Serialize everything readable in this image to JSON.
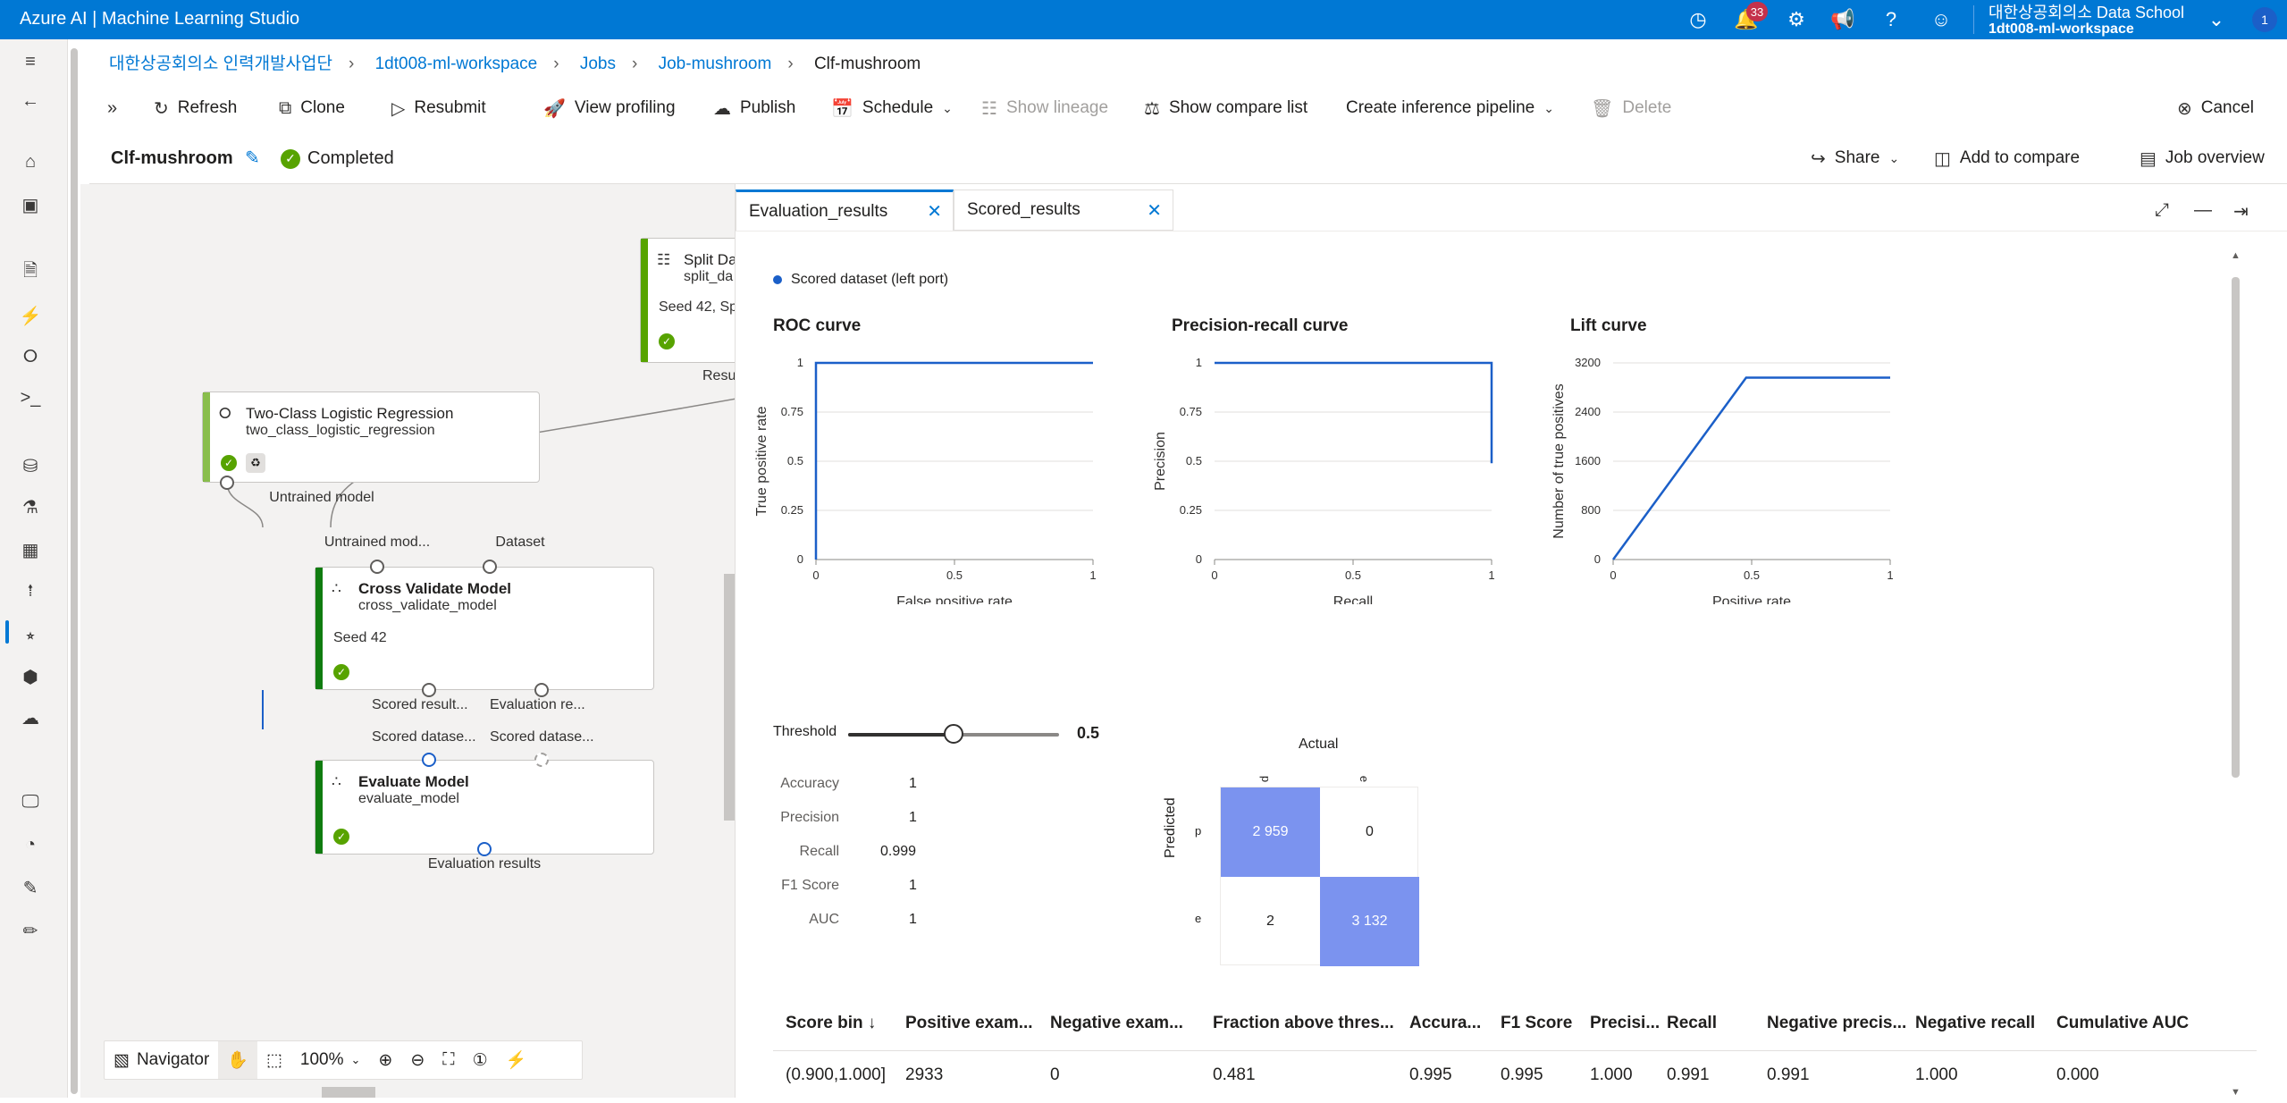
{
  "topbar": {
    "title": "Azure AI | Machine Learning Studio",
    "notification_count": "33",
    "org": "대한상공회의소 Data School",
    "workspace": "1dt008-ml-workspace",
    "avatar_initial": "1"
  },
  "breadcrumb": {
    "items": [
      "대한상공회의소 인력개발사업단",
      "1dt008-ml-workspace",
      "Jobs",
      "Job-mushroom",
      "Clf-mushroom"
    ]
  },
  "toolbar": {
    "refresh": "Refresh",
    "clone": "Clone",
    "resubmit": "Resubmit",
    "view_profiling": "View profiling",
    "publish": "Publish",
    "schedule": "Schedule",
    "show_lineage": "Show lineage",
    "show_compare_list": "Show compare list",
    "create_inference_pipeline": "Create inference pipeline",
    "delete": "Delete",
    "cancel": "Cancel"
  },
  "job": {
    "name": "Clf-mushroom",
    "status": "Completed",
    "share": "Share",
    "add_to_compare": "Add to compare",
    "job_overview": "Job overview"
  },
  "canvas": {
    "split_node": {
      "title": "Split Da",
      "subtitle": "split_da",
      "seed": "Seed 42, Sp",
      "port_label": "Resul"
    },
    "lr_node": {
      "title": "Two-Class Logistic Regression",
      "subtitle": "two_class_logistic_regression",
      "out_port": "Untrained model"
    },
    "cv_node": {
      "title": "Cross Validate Model",
      "subtitle": "cross_validate_model",
      "seed": "Seed 42",
      "in1": "Untrained mod...",
      "in2": "Dataset",
      "out1": "Scored result...",
      "out2": "Evaluation re..."
    },
    "eval_node": {
      "title": "Evaluate Model",
      "subtitle": "evaluate_model",
      "in1": "Scored datase...",
      "in2": "Scored datase...",
      "out": "Evaluation results"
    },
    "navigator": {
      "label": "Navigator",
      "zoom": "100%"
    }
  },
  "panel": {
    "tabs": [
      "Evaluation_results",
      "Scored_results"
    ],
    "legend": "Scored dataset (left port)",
    "threshold_label": "Threshold",
    "threshold_value": "0.5",
    "metrics": [
      {
        "label": "Accuracy",
        "value": "1"
      },
      {
        "label": "Precision",
        "value": "1"
      },
      {
        "label": "Recall",
        "value": "0.999"
      },
      {
        "label": "F1 Score",
        "value": "1"
      },
      {
        "label": "AUC",
        "value": "1"
      }
    ],
    "confusion": {
      "actual_label": "Actual",
      "predicted_label": "Predicted",
      "col_labels": [
        "p",
        "e"
      ],
      "row_labels": [
        "p",
        "e"
      ],
      "cells": [
        [
          "2 959",
          "0"
        ],
        [
          "2",
          "3 132"
        ]
      ]
    },
    "table": {
      "headers": [
        "Score bin ↓",
        "Positive exam...",
        "Negative exam...",
        "Fraction above thres...",
        "Accura...",
        "F1 Score",
        "Precisi...",
        "Recall",
        "Negative precis...",
        "Negative recall",
        "Cumulative AUC"
      ],
      "rows": [
        [
          "(0.900,1.000]",
          "2933",
          "0",
          "0.481",
          "0.995",
          "0.995",
          "1.000",
          "0.991",
          "0.991",
          "1.000",
          "0.000"
        ]
      ]
    }
  },
  "chart_data": [
    {
      "type": "line",
      "title": "ROC curve",
      "xlabel": "False positive rate",
      "ylabel": "True positive rate",
      "xlim": [
        0,
        1
      ],
      "ylim": [
        0,
        1
      ],
      "xticks": [
        "0",
        "0.5",
        "1"
      ],
      "yticks": [
        "0",
        "0.25",
        "0.5",
        "0.75",
        "1"
      ],
      "color": "#1b5fc8",
      "x": [
        0,
        0,
        1
      ],
      "y": [
        0,
        1,
        1
      ]
    },
    {
      "type": "line",
      "title": "Precision-recall curve",
      "xlabel": "Recall",
      "ylabel": "Precision",
      "xlim": [
        0,
        1
      ],
      "ylim": [
        0,
        1
      ],
      "xticks": [
        "0",
        "0.5",
        "1"
      ],
      "yticks": [
        "0",
        "0.25",
        "0.5",
        "0.75",
        "1"
      ],
      "color": "#1b5fc8",
      "x": [
        0,
        1,
        1
      ],
      "y": [
        1,
        1,
        0.49
      ]
    },
    {
      "type": "line",
      "title": "Lift curve",
      "xlabel": "Positive rate",
      "ylabel": "Number of true positives",
      "xlim": [
        0,
        1
      ],
      "ylim": [
        0,
        3200
      ],
      "xticks": [
        "0",
        "0.5",
        "1"
      ],
      "yticks": [
        "0",
        "800",
        "1600",
        "2400",
        "3200"
      ],
      "color": "#1b5fc8",
      "x": [
        0,
        0.48,
        1
      ],
      "y": [
        0,
        2960,
        2960
      ]
    }
  ],
  "colors": {
    "brand": "#0078d4",
    "success": "#57a300",
    "node_bar": "#107c10",
    "series": "#1b5fc8",
    "confusion_fill": "#7b93ef"
  }
}
